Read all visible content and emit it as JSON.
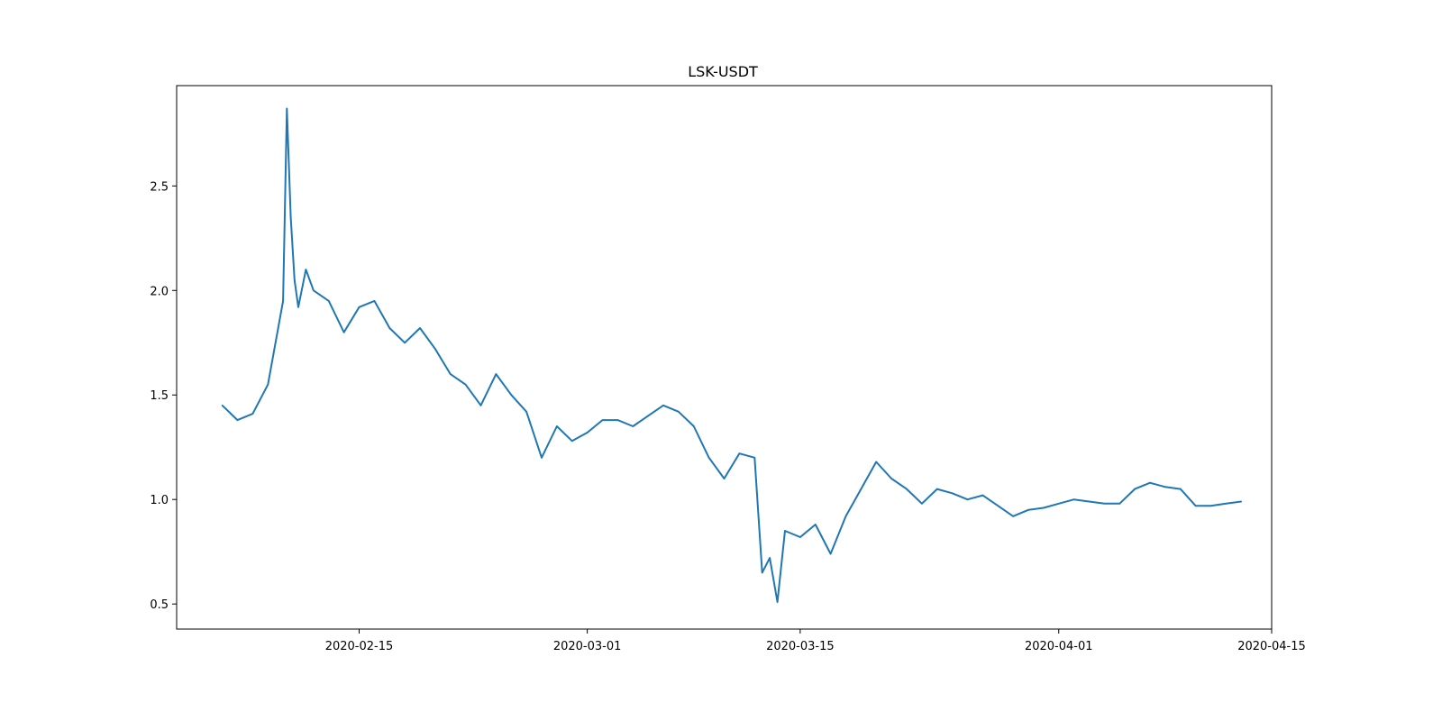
{
  "chart_data": {
    "type": "line",
    "title": "LSK-USDT",
    "xlabel": "",
    "ylabel": "",
    "x_tick_labels": [
      "2020-02-15",
      "2020-03-01",
      "2020-03-15",
      "2020-04-01",
      "2020-04-15"
    ],
    "y_tick_labels": [
      "0.5",
      "1.0",
      "1.5",
      "2.0",
      "2.5"
    ],
    "y_ticks": [
      0.5,
      1.0,
      1.5,
      2.0,
      2.5
    ],
    "xlim": [
      "2020-02-03",
      "2020-04-15"
    ],
    "ylim": [
      0.38,
      2.98
    ],
    "grid": false,
    "line_color": "#1f77b4",
    "series": [
      {
        "x": [
          "2020-02-06",
          "2020-02-07",
          "2020-02-08",
          "2020-02-09",
          "2020-02-09T12:00",
          "2020-02-10",
          "2020-02-10T06:00",
          "2020-02-10T12:00",
          "2020-02-10T18:00",
          "2020-02-11",
          "2020-02-11T12:00",
          "2020-02-12",
          "2020-02-13",
          "2020-02-14",
          "2020-02-15",
          "2020-02-16",
          "2020-02-17",
          "2020-02-18",
          "2020-02-19",
          "2020-02-20",
          "2020-02-21",
          "2020-02-22",
          "2020-02-23",
          "2020-02-24",
          "2020-02-25",
          "2020-02-26",
          "2020-02-27",
          "2020-02-28",
          "2020-02-29",
          "2020-03-01",
          "2020-03-02",
          "2020-03-03",
          "2020-03-04",
          "2020-03-05",
          "2020-03-06",
          "2020-03-07",
          "2020-03-08",
          "2020-03-09",
          "2020-03-10",
          "2020-03-11",
          "2020-03-12",
          "2020-03-12T12:00",
          "2020-03-13",
          "2020-03-13T12:00",
          "2020-03-14",
          "2020-03-15",
          "2020-03-16",
          "2020-03-17",
          "2020-03-18",
          "2020-03-19",
          "2020-03-20",
          "2020-03-21",
          "2020-03-22",
          "2020-03-23",
          "2020-03-24",
          "2020-03-25",
          "2020-03-26",
          "2020-03-27",
          "2020-03-28",
          "2020-03-29",
          "2020-03-30",
          "2020-03-31",
          "2020-04-01",
          "2020-04-02",
          "2020-04-03",
          "2020-04-04",
          "2020-04-05",
          "2020-04-06",
          "2020-04-07",
          "2020-04-08",
          "2020-04-09",
          "2020-04-10",
          "2020-04-11",
          "2020-04-12",
          "2020-04-13"
        ],
        "values": [
          1.45,
          1.38,
          1.41,
          1.55,
          1.75,
          1.95,
          2.87,
          2.35,
          2.05,
          1.92,
          2.1,
          2.0,
          1.95,
          1.8,
          1.92,
          1.95,
          1.82,
          1.75,
          1.82,
          1.72,
          1.6,
          1.55,
          1.45,
          1.6,
          1.5,
          1.42,
          1.2,
          1.35,
          1.28,
          1.32,
          1.38,
          1.38,
          1.35,
          1.4,
          1.45,
          1.42,
          1.35,
          1.2,
          1.1,
          1.22,
          1.2,
          0.65,
          0.72,
          0.51,
          0.85,
          0.82,
          0.88,
          0.74,
          0.92,
          1.05,
          1.18,
          1.1,
          1.05,
          0.98,
          1.05,
          1.03,
          1.0,
          1.02,
          0.97,
          0.92,
          0.95,
          0.96,
          0.98,
          1.0,
          0.99,
          0.98,
          0.98,
          1.05,
          1.08,
          1.06,
          1.05,
          0.97,
          0.97,
          0.98,
          0.99
        ]
      }
    ]
  }
}
